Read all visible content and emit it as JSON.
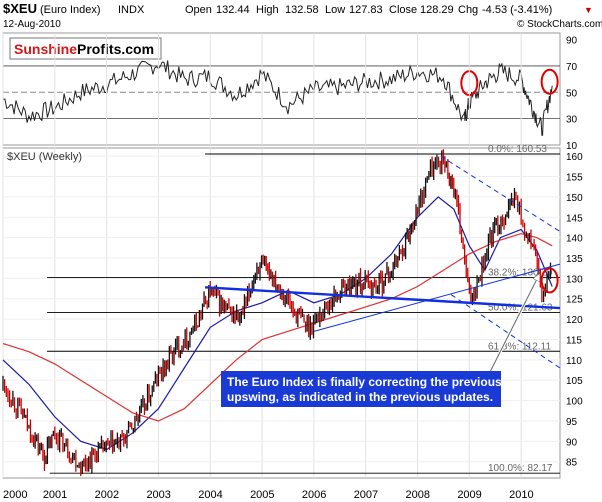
{
  "header": {
    "symbol": "$XEU",
    "name": "(Euro Index)",
    "exchange": "INDX",
    "date": "12-Aug-2010",
    "open_label": "Open",
    "open": "132.44",
    "high_label": "High",
    "high": "132.58",
    "low_label": "Low",
    "low": "127.83",
    "close_label": "Close",
    "close": "128.29",
    "chg_label": "Chg",
    "chg": "-4.53 (-3.41%)",
    "chg_arrow": "▼",
    "copyright": "© StockCharts.com"
  },
  "logo": {
    "word1": "Sunshine",
    "word2": "Profits.com"
  },
  "colors": {
    "price_up": "#111111",
    "price_down": "#cc0000",
    "ma_fast": "#1a1aaa",
    "ma_slow": "#e03030",
    "trend": "#1030e0",
    "fib": "#000000",
    "annotation_bg": "#1a3ad6",
    "annotation_text": "#ffffff",
    "highlight": "#e00000",
    "rsi_line": "#222222"
  },
  "chart_data": [
    {
      "type": "line",
      "panel": "RSI",
      "ylim": [
        10,
        95
      ],
      "reference_lines": [
        30,
        50,
        70
      ],
      "yticks": [
        "90",
        "70",
        "50",
        "30",
        "10"
      ],
      "x_approx": [
        2000.0,
        2000.5,
        2001.0,
        2001.5,
        2002.0,
        2002.5,
        2003.0,
        2003.5,
        2004.0,
        2004.5,
        2005.0,
        2005.5,
        2006.0,
        2006.5,
        2007.0,
        2007.5,
        2008.0,
        2008.5,
        2008.9,
        2009.0,
        2009.3,
        2009.6,
        2010.0,
        2010.2,
        2010.4,
        2010.6
      ],
      "values_approx": [
        45,
        32,
        38,
        50,
        56,
        64,
        72,
        60,
        62,
        48,
        64,
        40,
        52,
        54,
        58,
        60,
        66,
        62,
        28,
        42,
        57,
        66,
        60,
        40,
        22,
        55
      ],
      "highlights": [
        {
          "x": 2009.0,
          "y": 57
        },
        {
          "x": 2010.55,
          "y": 58
        }
      ]
    },
    {
      "type": "line",
      "panel": "Price",
      "title": "$XEU (Weekly)",
      "xlabel": "",
      "ylabel": "",
      "ylim": [
        81,
        162
      ],
      "xlim": [
        2000.0,
        2010.75
      ],
      "x_tick_labels": [
        "2000",
        "2001",
        "2002",
        "2003",
        "2004",
        "2005",
        "2006",
        "2007",
        "2008",
        "2009",
        "2010"
      ],
      "y_tick_labels": [
        "160",
        "155",
        "150",
        "145",
        "140",
        "135",
        "130",
        "125",
        "120",
        "115",
        "110",
        "105",
        "100",
        "95",
        "90",
        "85"
      ],
      "series": [
        {
          "name": "Euro Index weekly close",
          "style": "bars",
          "x": [
            2000.0,
            2000.35,
            2000.8,
            2001.0,
            2001.5,
            2001.9,
            2002.3,
            2002.7,
            2003.0,
            2003.3,
            2003.7,
            2004.0,
            2004.3,
            2004.6,
            2004.9,
            2005.2,
            2005.6,
            2005.9,
            2006.3,
            2006.6,
            2006.9,
            2007.2,
            2007.5,
            2007.8,
            2008.0,
            2008.25,
            2008.5,
            2008.7,
            2008.85,
            2009.0,
            2009.15,
            2009.4,
            2009.7,
            2009.9,
            2010.1,
            2010.25,
            2010.4,
            2010.5,
            2010.6
          ],
          "values": [
            104,
            97,
            86,
            92,
            84,
            88,
            90,
            98,
            106,
            112,
            118,
            127,
            122,
            120,
            133,
            131,
            122,
            118,
            124,
            128,
            129,
            128,
            132,
            140,
            147,
            157,
            159,
            152,
            140,
            125,
            129,
            140,
            146,
            150,
            140,
            138,
            125,
            129,
            132
          ]
        },
        {
          "name": "Moving average (fast)",
          "color_key": "ma_fast",
          "x": [
            2000.0,
            2000.5,
            2001.0,
            2001.5,
            2002.0,
            2002.5,
            2003.0,
            2003.5,
            2004.0,
            2004.5,
            2005.0,
            2005.5,
            2006.0,
            2006.5,
            2007.0,
            2007.5,
            2008.0,
            2008.4,
            2008.7,
            2009.0,
            2009.3,
            2009.6,
            2010.0,
            2010.3,
            2010.6
          ],
          "values": [
            110,
            104,
            96,
            90,
            88,
            92,
            98,
            108,
            118,
            122,
            124,
            127,
            124,
            126,
            130,
            136,
            145,
            150,
            147,
            138,
            132,
            140,
            142,
            137,
            128
          ]
        },
        {
          "name": "Moving average (slow)",
          "color_key": "ma_slow",
          "x": [
            2000.0,
            2000.5,
            2001.0,
            2001.5,
            2002.0,
            2002.5,
            2003.0,
            2003.5,
            2004.0,
            2004.5,
            2005.0,
            2005.5,
            2006.0,
            2006.5,
            2007.0,
            2007.5,
            2008.0,
            2008.5,
            2009.0,
            2009.5,
            2010.0,
            2010.3,
            2010.6
          ],
          "values": [
            114,
            112,
            109,
            105,
            101,
            97,
            95,
            98,
            104,
            110,
            115,
            117,
            119,
            121,
            123,
            125,
            128,
            132,
            136,
            139,
            141,
            140,
            138
          ]
        }
      ],
      "fibonacci": [
        {
          "label": "0.0%: 160.53",
          "value": 160.53
        },
        {
          "label": "38.2%: 130.20",
          "value": 130.2
        },
        {
          "label": "50.0%: 121.63",
          "value": 121.63
        },
        {
          "label": "61.8%: 112.11",
          "value": 112.11
        },
        {
          "label": "100.0%: 82.17",
          "value": 82.17
        }
      ],
      "trend_lines": [
        {
          "style": "solid",
          "thick": true,
          "from": [
            2003.9,
            127.8
          ],
          "to": [
            2010.75,
            122.7
          ]
        },
        {
          "style": "solid",
          "thick": false,
          "from": [
            2006.0,
            117.0
          ],
          "to": [
            2010.75,
            133.5
          ]
        },
        {
          "style": "dashed",
          "from": [
            2008.45,
            160.0
          ],
          "to": [
            2010.75,
            141.5
          ]
        },
        {
          "style": "dashed",
          "from": [
            2008.65,
            126.0
          ],
          "to": [
            2010.75,
            108.0
          ]
        }
      ],
      "highlight": {
        "x": 2010.55,
        "y": 129.5
      },
      "annotation": "The Euro Index is finally correcting the previous upswing, as indicated in the previous updates."
    }
  ]
}
